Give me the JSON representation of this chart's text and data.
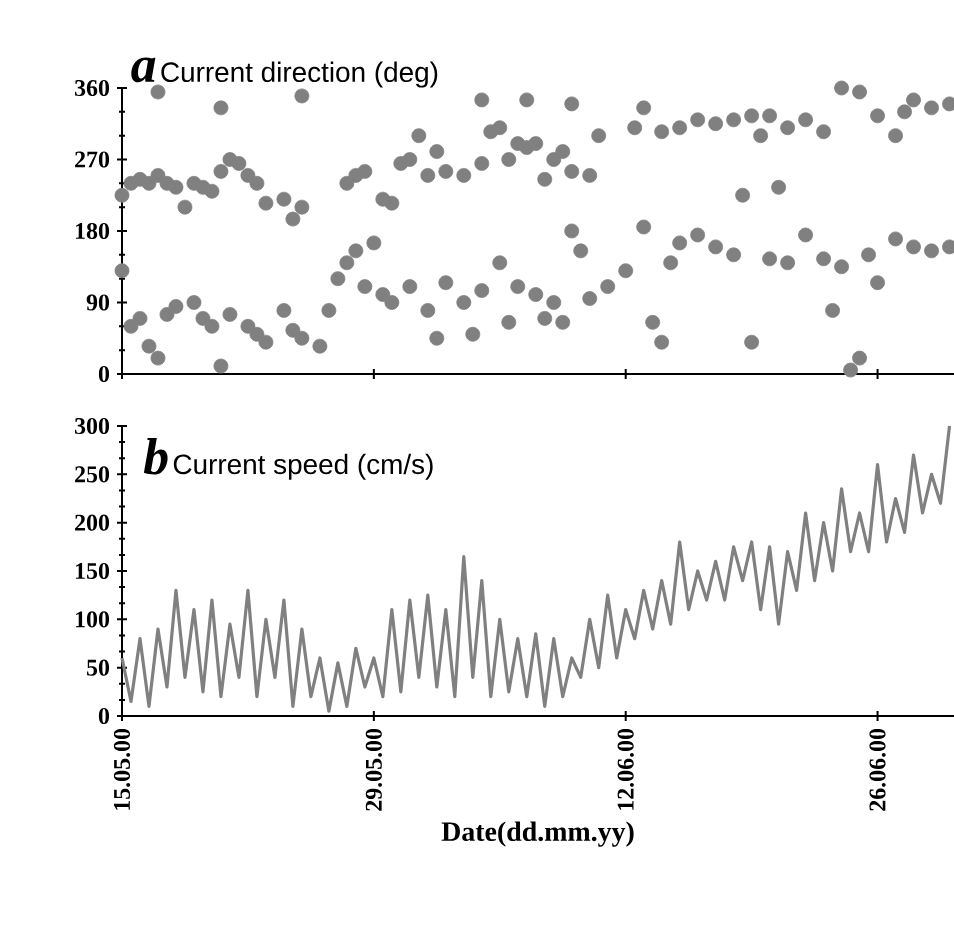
{
  "chart_data": [
    {
      "type": "scatter",
      "title": "Current direction (deg)",
      "annotations": [
        "a"
      ],
      "xlim": [
        "2000-05-15",
        "2000-06-30T06:00"
      ],
      "ylim": [
        0,
        360
      ],
      "yticks": [
        0,
        90,
        180,
        270,
        360
      ],
      "xticks": [
        {
          "value": "2000-05-15",
          "label": null
        },
        {
          "value": "2000-05-29",
          "label": null
        },
        {
          "value": "2000-06-12",
          "label": null
        },
        {
          "value": "2000-06-26",
          "label": null
        }
      ],
      "tick_labels": "y",
      "marker": "circle",
      "series": [
        {
          "color": "#808080",
          "x": [
            "2000-05-15",
            "2000-05-15T12:00",
            "2000-05-16",
            "2000-05-16T12:00",
            "2000-05-17",
            "2000-05-17T12:00",
            "2000-05-18",
            "2000-05-18T12:00",
            "2000-05-19",
            "2000-05-19T12:00",
            "2000-05-20",
            "2000-05-20T12:00",
            "2000-05-21",
            "2000-05-21T12:00",
            "2000-05-22",
            "2000-05-22T12:00",
            "2000-05-23",
            "2000-05-24",
            "2000-05-24T12:00",
            "2000-05-25",
            "2000-05-27T12:00",
            "2000-05-28",
            "2000-05-28T12:00",
            "2000-05-29T12:00",
            "2000-05-30",
            "2000-05-30T12:00",
            "2000-05-31",
            "2000-05-31T12:00",
            "2000-06-01",
            "2000-06-01T12:00",
            "2000-06-02",
            "2000-06-03",
            "2000-06-04",
            "2000-06-04T12:00",
            "2000-06-05",
            "2000-06-05T12:00",
            "2000-06-06",
            "2000-06-06T12:00",
            "2000-06-07",
            "2000-06-07T12:00",
            "2000-06-08",
            "2000-06-08T12:00",
            "2000-06-09",
            "2000-06-10",
            "2000-06-10T12:00",
            "2000-06-12T12:00",
            "2000-06-13",
            "2000-06-14",
            "2000-06-15",
            "2000-06-16",
            "2000-06-17",
            "2000-06-18",
            "2000-06-19",
            "2000-06-19T12:00",
            "2000-06-20",
            "2000-06-21",
            "2000-06-22",
            "2000-06-23",
            "2000-06-24",
            "2000-06-25",
            "2000-06-26",
            "2000-06-27",
            "2000-06-27T12:00",
            "2000-06-28",
            "2000-06-29",
            "2000-06-30",
            "2000-05-17",
            "2000-05-20T12:00",
            "2000-05-25",
            "2000-06-04",
            "2000-06-06T12:00",
            "2000-06-09",
            "2000-06-18T12:00",
            "2000-06-20T12:00",
            "2000-05-15",
            "2000-05-15T12:00",
            "2000-05-16",
            "2000-05-16T12:00",
            "2000-05-17",
            "2000-05-17T12:00",
            "2000-05-18",
            "2000-05-19",
            "2000-05-19T12:00",
            "2000-05-20",
            "2000-05-20T12:00",
            "2000-05-21",
            "2000-05-22",
            "2000-05-22T12:00",
            "2000-05-23",
            "2000-05-24",
            "2000-05-24T12:00",
            "2000-05-25",
            "2000-05-26",
            "2000-05-26T12:00",
            "2000-05-27",
            "2000-05-27T12:00",
            "2000-05-28",
            "2000-05-28T12:00",
            "2000-05-29",
            "2000-05-29T12:00",
            "2000-05-30",
            "2000-05-31",
            "2000-06-01",
            "2000-06-01T12:00",
            "2000-06-02",
            "2000-06-03",
            "2000-06-03T12:00",
            "2000-06-04",
            "2000-06-05",
            "2000-06-05T12:00",
            "2000-06-06",
            "2000-06-07",
            "2000-06-07T12:00",
            "2000-06-08",
            "2000-06-08T12:00",
            "2000-06-09",
            "2000-06-09T12:00",
            "2000-06-10",
            "2000-06-11",
            "2000-06-12",
            "2000-06-13",
            "2000-06-13T12:00",
            "2000-06-14",
            "2000-06-14T12:00",
            "2000-06-15",
            "2000-06-16",
            "2000-06-17",
            "2000-06-18",
            "2000-06-19",
            "2000-06-20",
            "2000-06-21",
            "2000-06-22",
            "2000-06-23",
            "2000-06-23T12:00",
            "2000-06-24",
            "2000-06-24T12:00",
            "2000-06-25",
            "2000-06-25T12:00",
            "2000-06-26",
            "2000-06-27",
            "2000-06-28",
            "2000-06-29",
            "2000-06-30"
          ],
          "values": [
            225,
            240,
            245,
            240,
            250,
            240,
            235,
            210,
            240,
            235,
            230,
            255,
            270,
            265,
            250,
            240,
            215,
            220,
            195,
            210,
            240,
            250,
            255,
            220,
            215,
            265,
            270,
            300,
            250,
            280,
            255,
            250,
            265,
            305,
            310,
            270,
            290,
            285,
            290,
            245,
            270,
            280,
            255,
            250,
            300,
            310,
            335,
            305,
            310,
            320,
            315,
            320,
            325,
            300,
            325,
            310,
            320,
            305,
            360,
            355,
            325,
            300,
            330,
            345,
            335,
            340,
            355,
            335,
            350,
            345,
            345,
            340,
            225,
            235,
            130,
            60,
            70,
            35,
            20,
            75,
            85,
            90,
            70,
            60,
            10,
            75,
            60,
            50,
            40,
            80,
            55,
            45,
            35,
            80,
            120,
            140,
            155,
            110,
            165,
            100,
            90,
            110,
            80,
            45,
            115,
            90,
            50,
            105,
            140,
            65,
            110,
            100,
            70,
            90,
            65,
            180,
            155,
            95,
            110,
            130,
            185,
            65,
            40,
            140,
            165,
            175,
            160,
            150,
            40,
            145,
            140,
            175,
            145,
            80,
            135,
            5,
            20,
            150,
            115,
            170,
            160,
            155,
            160
          ]
        }
      ]
    },
    {
      "type": "line",
      "title": "Current speed (cm/s)",
      "annotations": [
        "b"
      ],
      "xlabel": "Date(dd.mm.yy)",
      "xlim": [
        "2000-05-15",
        "2000-06-30T06:00"
      ],
      "ylim": [
        0,
        300
      ],
      "yticks": [
        0,
        50,
        100,
        150,
        200,
        250,
        300
      ],
      "xticks": [
        {
          "value": "2000-05-15",
          "label": "15.05.00"
        },
        {
          "value": "2000-05-29",
          "label": "29.05.00"
        },
        {
          "value": "2000-06-12",
          "label": "12.06.00"
        },
        {
          "value": "2000-06-26",
          "label": "26.06.00"
        }
      ],
      "series": [
        {
          "color": "#808080",
          "x": [
            "2000-05-15",
            "2000-05-15T12:00",
            "2000-05-16",
            "2000-05-16T12:00",
            "2000-05-17",
            "2000-05-17T12:00",
            "2000-05-18",
            "2000-05-18T12:00",
            "2000-05-19",
            "2000-05-19T12:00",
            "2000-05-20",
            "2000-05-20T12:00",
            "2000-05-21",
            "2000-05-21T12:00",
            "2000-05-22",
            "2000-05-22T12:00",
            "2000-05-23",
            "2000-05-23T12:00",
            "2000-05-24",
            "2000-05-24T12:00",
            "2000-05-25",
            "2000-05-25T12:00",
            "2000-05-26",
            "2000-05-26T12:00",
            "2000-05-27",
            "2000-05-27T12:00",
            "2000-05-28",
            "2000-05-28T12:00",
            "2000-05-29",
            "2000-05-29T12:00",
            "2000-05-30",
            "2000-05-30T12:00",
            "2000-05-31",
            "2000-05-31T12:00",
            "2000-06-01",
            "2000-06-01T12:00",
            "2000-06-02",
            "2000-06-02T12:00",
            "2000-06-03",
            "2000-06-03T12:00",
            "2000-06-04",
            "2000-06-04T12:00",
            "2000-06-05",
            "2000-06-05T12:00",
            "2000-06-06",
            "2000-06-06T12:00",
            "2000-06-07",
            "2000-06-07T12:00",
            "2000-06-08",
            "2000-06-08T12:00",
            "2000-06-09",
            "2000-06-09T12:00",
            "2000-06-10",
            "2000-06-10T12:00",
            "2000-06-11",
            "2000-06-11T12:00",
            "2000-06-12",
            "2000-06-12T12:00",
            "2000-06-13",
            "2000-06-13T12:00",
            "2000-06-14",
            "2000-06-14T12:00",
            "2000-06-15",
            "2000-06-15T12:00",
            "2000-06-16",
            "2000-06-16T12:00",
            "2000-06-17",
            "2000-06-17T12:00",
            "2000-06-18",
            "2000-06-18T12:00",
            "2000-06-19",
            "2000-06-19T12:00",
            "2000-06-20",
            "2000-06-20T12:00",
            "2000-06-21",
            "2000-06-21T12:00",
            "2000-06-22",
            "2000-06-22T12:00",
            "2000-06-23",
            "2000-06-23T12:00",
            "2000-06-24",
            "2000-06-24T12:00",
            "2000-06-25",
            "2000-06-25T12:00",
            "2000-06-26",
            "2000-06-26T12:00",
            "2000-06-27",
            "2000-06-27T12:00",
            "2000-06-28",
            "2000-06-28T12:00",
            "2000-06-29",
            "2000-06-29T12:00",
            "2000-06-30"
          ],
          "values": [
            60,
            15,
            80,
            10,
            90,
            30,
            130,
            40,
            110,
            25,
            120,
            20,
            95,
            40,
            130,
            20,
            100,
            40,
            120,
            10,
            90,
            20,
            60,
            5,
            55,
            10,
            70,
            30,
            60,
            20,
            110,
            25,
            120,
            40,
            125,
            30,
            110,
            20,
            165,
            40,
            140,
            20,
            100,
            25,
            80,
            20,
            85,
            10,
            80,
            20,
            60,
            40,
            100,
            50,
            125,
            60,
            110,
            80,
            130,
            90,
            140,
            95,
            180,
            110,
            150,
            120,
            160,
            120,
            175,
            140,
            180,
            110,
            175,
            95,
            170,
            130,
            210,
            140,
            200,
            150,
            235,
            170,
            210,
            170,
            260,
            180,
            225,
            190,
            270,
            210,
            250,
            220,
            300
          ]
        }
      ]
    }
  ]
}
